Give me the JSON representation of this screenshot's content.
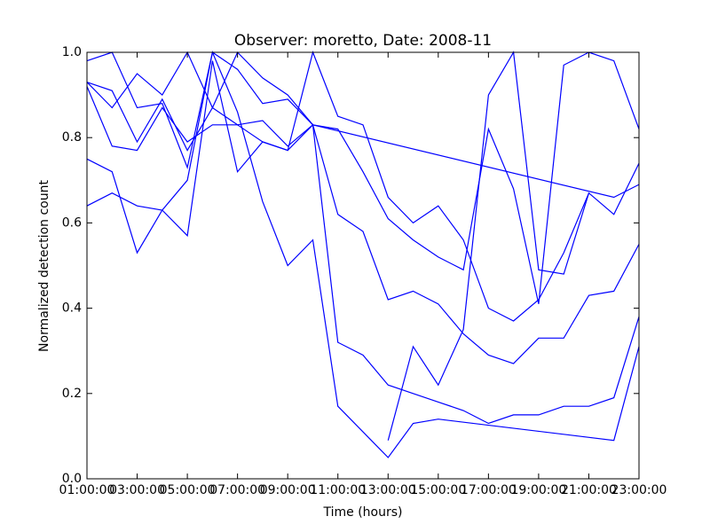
{
  "chart_data": {
    "type": "line",
    "title": "Observer: moretto, Date: 2008-11",
    "xlabel": "Time (hours)",
    "ylabel": "Normalized detection count",
    "xlim": [
      1,
      23
    ],
    "xticks": [
      {
        "value": 1,
        "label": "01:00:00"
      },
      {
        "value": 3,
        "label": "03:00:00"
      },
      {
        "value": 5,
        "label": "05:00:00"
      },
      {
        "value": 7,
        "label": "07:00:00"
      },
      {
        "value": 9,
        "label": "09:00:00"
      },
      {
        "value": 11,
        "label": "11:00:00"
      },
      {
        "value": 13,
        "label": "13:00:00"
      },
      {
        "value": 15,
        "label": "15:00:00"
      },
      {
        "value": 17,
        "label": "17:00:00"
      },
      {
        "value": 19,
        "label": "19:00:00"
      },
      {
        "value": 21,
        "label": "21:00:00"
      },
      {
        "value": 23,
        "label": "23:00:00"
      }
    ],
    "ylim": [
      0,
      1
    ],
    "yticks": [
      {
        "value": 0,
        "label": "0.0"
      },
      0.2,
      0.4,
      0.6,
      0.8,
      {
        "value": 1,
        "label": "1.0"
      }
    ],
    "series": [
      {
        "color": "#0000ff",
        "x": [
          1,
          2,
          3,
          4,
          5,
          6,
          7,
          8,
          9,
          10,
          11,
          12,
          13,
          14,
          15,
          16,
          17,
          18,
          19,
          20,
          21,
          22,
          23
        ],
        "values": [
          0.98,
          1.0,
          0.87,
          0.88,
          0.73,
          1.0,
          0.96,
          0.88,
          0.89,
          0.83,
          0.82,
          0.72,
          0.61,
          0.56,
          0.52,
          0.49,
          0.82,
          0.68,
          0.41,
          0.97,
          1.0,
          0.98,
          0.82
        ]
      },
      {
        "color": "#0000ff",
        "x": [
          1,
          2,
          3,
          4,
          5,
          6,
          7,
          8,
          9,
          10,
          22,
          23
        ],
        "values": [
          0.93,
          0.87,
          0.95,
          0.9,
          1.0,
          0.87,
          1.0,
          0.94,
          0.9,
          0.83,
          0.66,
          0.69
        ]
      },
      {
        "color": "#0000ff",
        "x": [
          1,
          2,
          3,
          4,
          5,
          6,
          7,
          8,
          9,
          10,
          11,
          12,
          13,
          14,
          15,
          16,
          17,
          18,
          19,
          20,
          21,
          22,
          23
        ],
        "values": [
          0.93,
          0.91,
          0.79,
          0.89,
          0.77,
          0.87,
          0.83,
          0.84,
          0.78,
          0.83,
          0.62,
          0.58,
          0.42,
          0.44,
          0.41,
          0.34,
          0.29,
          0.27,
          0.33,
          0.33,
          0.43,
          0.44,
          0.55
        ]
      },
      {
        "color": "#0000ff",
        "x": [
          1,
          2,
          3,
          4,
          5,
          6,
          7,
          8,
          9,
          10,
          11,
          12,
          13,
          14,
          15,
          16,
          17,
          18,
          19,
          20,
          21,
          22,
          23
        ],
        "values": [
          0.92,
          0.78,
          0.77,
          0.87,
          0.79,
          0.83,
          0.83,
          0.79,
          0.77,
          1.0,
          0.85,
          0.83,
          0.66,
          0.6,
          0.64,
          0.56,
          0.4,
          0.37,
          0.42,
          0.53,
          0.67,
          0.62,
          0.74
        ]
      },
      {
        "color": "#0000ff",
        "x": [
          1,
          2,
          3,
          4,
          5,
          6,
          7,
          8,
          9,
          10,
          11,
          12,
          13,
          14,
          15,
          22,
          23
        ],
        "values": [
          0.75,
          0.72,
          0.53,
          0.63,
          0.7,
          1.0,
          0.86,
          0.65,
          0.5,
          0.56,
          0.17,
          0.11,
          0.05,
          0.13,
          0.14,
          0.09,
          0.31
        ]
      },
      {
        "color": "#0000ff",
        "x": [
          1,
          2,
          3,
          4,
          5,
          6,
          7,
          8,
          9,
          10,
          11,
          12,
          13,
          14,
          15,
          16,
          17,
          18,
          19,
          20,
          21,
          22,
          23
        ],
        "values": [
          0.64,
          0.67,
          0.64,
          0.63,
          0.57,
          0.98,
          0.72,
          0.79,
          0.77,
          0.83,
          0.32,
          0.29,
          0.22,
          0.2,
          0.18,
          0.16,
          0.13,
          0.15,
          0.15,
          0.17,
          0.17,
          0.19,
          0.38
        ]
      },
      {
        "color": "#0000ff",
        "x": [
          13,
          14,
          15,
          16,
          17,
          18,
          19,
          20,
          21
        ],
        "values": [
          0.09,
          0.31,
          0.22,
          0.35,
          0.9,
          1.0,
          0.49,
          0.48,
          0.67
        ]
      }
    ]
  }
}
